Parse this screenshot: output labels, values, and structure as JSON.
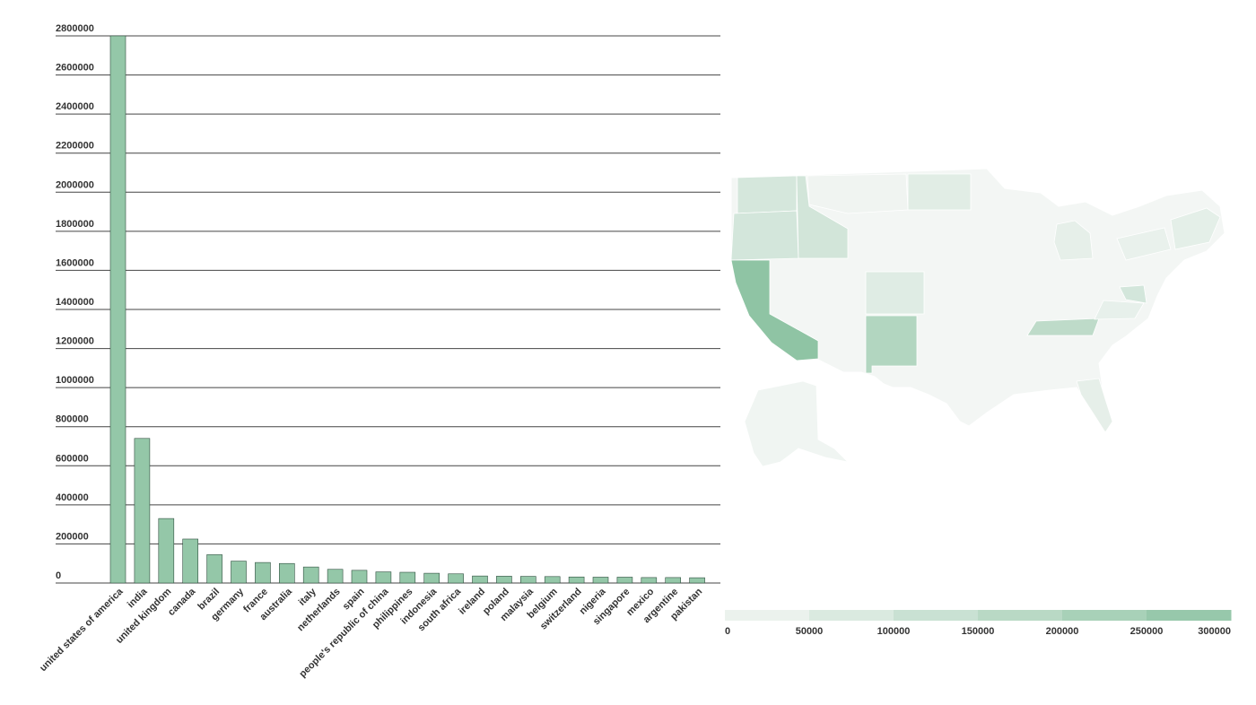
{
  "colors": {
    "bar": "#94c7a8",
    "grid": "#444444",
    "map_low": "#f3f6f4",
    "map_high": "#8fc4a4"
  },
  "chart_data": [
    {
      "type": "bar",
      "categories": [
        "united states of america",
        "india",
        "united kingdom",
        "canada",
        "brazil",
        "germany",
        "france",
        "australia",
        "italy",
        "netherlands",
        "spain",
        "people's republic of china",
        "philippines",
        "indonesia",
        "south africa",
        "ireland",
        "poland",
        "malaysia",
        "belgium",
        "switzerland",
        "nigeria",
        "singapore",
        "mexico",
        "argentine",
        "pakistan"
      ],
      "values": [
        2800000,
        740000,
        330000,
        225000,
        145000,
        112000,
        105000,
        100000,
        82000,
        70000,
        65000,
        57000,
        55000,
        50000,
        47000,
        36000,
        35000,
        34000,
        33000,
        31000,
        30000,
        30000,
        28000,
        28000,
        27000
      ],
      "yticks": [
        "0",
        "200000",
        "400000",
        "600000",
        "800000",
        "1000000",
        "1200000",
        "1400000",
        "1600000",
        "1800000",
        "2000000",
        "2200000",
        "2400000",
        "2600000",
        "2800000"
      ],
      "ylim": [
        0,
        2800000
      ],
      "grid": true
    },
    {
      "type": "heatmap",
      "legend_ticks": [
        "0",
        "50000",
        "100000",
        "150000",
        "200000",
        "250000",
        "300000"
      ],
      "range": [
        0,
        300000
      ],
      "regions": [
        {
          "name": "CA",
          "value": 300000
        },
        {
          "name": "NM",
          "value": 195000
        },
        {
          "name": "TN",
          "value": 160000
        },
        {
          "name": "WA",
          "value": 90000
        },
        {
          "name": "OR",
          "value": 95000
        },
        {
          "name": "ID",
          "value": 100000
        },
        {
          "name": "MT",
          "value": 10000
        },
        {
          "name": "ND",
          "value": 55000
        },
        {
          "name": "CO",
          "value": 60000
        },
        {
          "name": "MI",
          "value": 40000
        },
        {
          "name": "MD",
          "value": 95000
        },
        {
          "name": "VA",
          "value": 35000
        },
        {
          "name": "FL",
          "value": 40000
        },
        {
          "name": "MA",
          "value": 45000
        },
        {
          "name": "NY",
          "value": 30000
        },
        {
          "name": "AK",
          "value": 8000
        }
      ]
    }
  ]
}
